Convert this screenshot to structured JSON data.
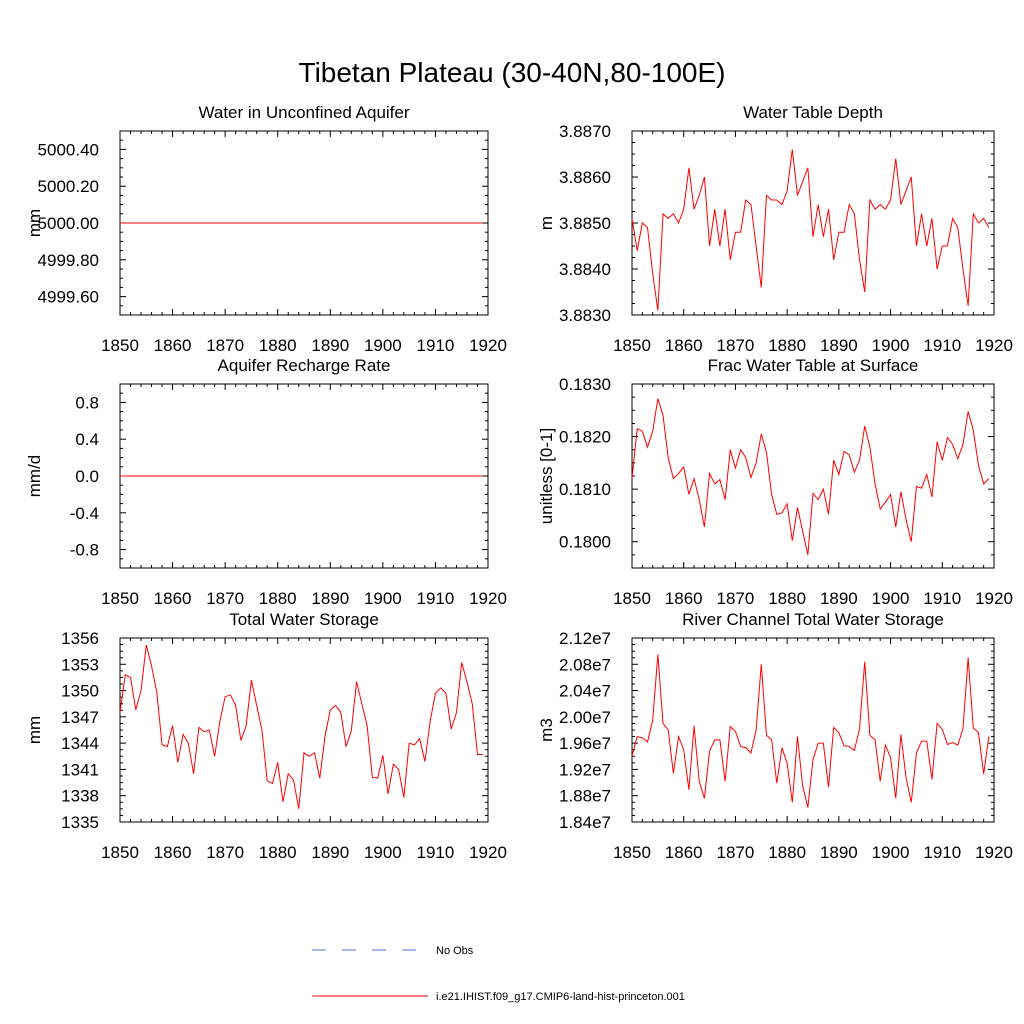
{
  "title": "Tibetan Plateau (30-40N,80-100E)",
  "legend": [
    {
      "label": "No Obs",
      "color": "#5a6fd6",
      "style": "dashed"
    },
    {
      "label": "i.e21.IHIST.f09_g17.CMIP6-land-hist-princeton.001",
      "color": "#ff0000",
      "style": "solid"
    }
  ],
  "chart_data": [
    {
      "type": "line",
      "title": "Water in Unconfined Aquifer",
      "ylabel": "mm",
      "xlim": [
        1850,
        1920
      ],
      "ylim": [
        4999.5,
        5000.5
      ],
      "xticks": [
        1850,
        1860,
        1870,
        1880,
        1890,
        1900,
        1910,
        1920
      ],
      "yticks": [
        4999.6,
        4999.8,
        5000.0,
        5000.2,
        5000.4
      ],
      "ytick_labels": [
        "4999.60",
        "4999.80",
        "5000.00",
        "5000.20",
        "5000.40"
      ],
      "series": [
        {
          "color": "#ff0000",
          "x_start": 1850,
          "x_step": 1,
          "y": [
            5000,
            5000,
            5000,
            5000,
            5000,
            5000,
            5000,
            5000,
            5000,
            5000,
            5000,
            5000,
            5000,
            5000,
            5000,
            5000,
            5000,
            5000,
            5000,
            5000,
            5000,
            5000,
            5000,
            5000,
            5000,
            5000,
            5000,
            5000,
            5000,
            5000,
            5000,
            5000,
            5000,
            5000,
            5000,
            5000,
            5000,
            5000,
            5000,
            5000,
            5000,
            5000,
            5000,
            5000,
            5000,
            5000,
            5000,
            5000,
            5000,
            5000,
            5000,
            5000,
            5000,
            5000,
            5000,
            5000,
            5000,
            5000,
            5000,
            5000,
            5000,
            5000,
            5000,
            5000,
            5000,
            5000,
            5000,
            5000,
            5000,
            5000
          ]
        }
      ]
    },
    {
      "type": "line",
      "title": "Water Table Depth",
      "ylabel": "m",
      "xlim": [
        1850,
        1920
      ],
      "ylim": [
        3.883,
        3.887
      ],
      "xticks": [
        1850,
        1860,
        1870,
        1880,
        1890,
        1900,
        1910,
        1920
      ],
      "yticks": [
        3.883,
        3.884,
        3.885,
        3.886,
        3.887
      ],
      "ytick_labels": [
        "3.8830",
        "3.8840",
        "3.8850",
        "3.8860",
        "3.8870"
      ],
      "series": [
        {
          "color": "#ff0000",
          "x_start": 1850,
          "x_step": 1,
          "y": [
            3.8851,
            3.8844,
            3.885,
            3.8849,
            3.8839,
            3.8831,
            3.8852,
            3.8851,
            3.8852,
            3.885,
            3.8853,
            3.8862,
            3.8853,
            3.8856,
            3.886,
            3.8845,
            3.8853,
            3.8845,
            3.8853,
            3.8842,
            3.8848,
            3.8848,
            3.8855,
            3.8854,
            3.8845,
            3.8836,
            3.8856,
            3.8855,
            3.8855,
            3.8854,
            3.8857,
            3.8866,
            3.8856,
            3.8859,
            3.8862,
            3.8847,
            3.8854,
            3.8847,
            3.8853,
            3.8842,
            3.8848,
            3.8848,
            3.8854,
            3.8852,
            3.8842,
            3.8835,
            3.8855,
            3.8853,
            3.8854,
            3.8853,
            3.8855,
            3.8864,
            3.8854,
            3.8857,
            3.886,
            3.8845,
            3.8852,
            3.8845,
            3.8851,
            3.884,
            3.8845,
            3.8845,
            3.8851,
            3.8849,
            3.884,
            3.8832,
            3.8852,
            3.885,
            3.8851,
            3.8849
          ]
        }
      ]
    },
    {
      "type": "line",
      "title": "Aquifer Recharge Rate",
      "ylabel": "mm/d",
      "xlim": [
        1850,
        1920
      ],
      "ylim": [
        -1.0,
        1.0
      ],
      "xticks": [
        1850,
        1860,
        1870,
        1880,
        1890,
        1900,
        1910,
        1920
      ],
      "yticks": [
        -0.8,
        -0.4,
        0.0,
        0.4,
        0.8
      ],
      "ytick_labels": [
        "-0.8",
        "-0.4",
        "0.0",
        "0.4",
        "0.8"
      ],
      "series": [
        {
          "color": "#ff0000",
          "x_start": 1850,
          "x_step": 1,
          "y": [
            0,
            0,
            0,
            0,
            0,
            0,
            0,
            0,
            0,
            0,
            0,
            0,
            0,
            0,
            0,
            0,
            0,
            0,
            0,
            0,
            0,
            0,
            0,
            0,
            0,
            0,
            0,
            0,
            0,
            0,
            0,
            0,
            0,
            0,
            0,
            0,
            0,
            0,
            0,
            0,
            0,
            0,
            0,
            0,
            0,
            0,
            0,
            0,
            0,
            0,
            0,
            0,
            0,
            0,
            0,
            0,
            0,
            0,
            0,
            0,
            0,
            0,
            0,
            0,
            0,
            0,
            0,
            0,
            0,
            0
          ]
        }
      ]
    },
    {
      "type": "line",
      "title": "Frac Water Table at Surface",
      "ylabel": "unitless [0-1]",
      "xlim": [
        1850,
        1920
      ],
      "ylim": [
        0.1795,
        0.183
      ],
      "xticks": [
        1850,
        1860,
        1870,
        1880,
        1890,
        1900,
        1910,
        1920
      ],
      "yticks": [
        0.18,
        0.181,
        0.182,
        0.183
      ],
      "ytick_labels": [
        "0.1800",
        "0.1810",
        "0.1820",
        "0.1830"
      ],
      "series": [
        {
          "color": "#ff0000",
          "x_start": 1850,
          "x_step": 1,
          "y": [
            0.1812,
            0.18215,
            0.1821,
            0.1818,
            0.1821,
            0.18272,
            0.1824,
            0.1816,
            0.1812,
            0.1813,
            0.18142,
            0.1809,
            0.1812,
            0.1808,
            0.18028,
            0.1813,
            0.1811,
            0.18118,
            0.1808,
            0.18175,
            0.1814,
            0.18175,
            0.1816,
            0.18122,
            0.1815,
            0.18205,
            0.1817,
            0.1809,
            0.18052,
            0.18055,
            0.18072,
            0.18002,
            0.18065,
            0.1802,
            0.17975,
            0.18092,
            0.1808,
            0.181,
            0.18052,
            0.18155,
            0.18128,
            0.18172,
            0.18165,
            0.18132,
            0.18155,
            0.1822,
            0.1818,
            0.1811,
            0.18062,
            0.18075,
            0.1809,
            0.18028,
            0.18095,
            0.18042,
            0.18,
            0.18105,
            0.18102,
            0.18128,
            0.18085,
            0.1819,
            0.18155,
            0.18198,
            0.18185,
            0.18158,
            0.18185,
            0.18248,
            0.18212,
            0.18145,
            0.1811,
            0.1812
          ]
        }
      ]
    },
    {
      "type": "line",
      "title": "Total Water Storage",
      "ylabel": "mm",
      "xlim": [
        1850,
        1920
      ],
      "ylim": [
        1335,
        1356
      ],
      "xticks": [
        1850,
        1860,
        1870,
        1880,
        1890,
        1900,
        1910,
        1920
      ],
      "yticks": [
        1335,
        1338,
        1341,
        1344,
        1347,
        1350,
        1353,
        1356
      ],
      "ytick_labels": [
        "1335",
        "1338",
        "1341",
        "1344",
        "1347",
        "1350",
        "1353",
        "1356"
      ],
      "series": [
        {
          "color": "#ff0000",
          "x_start": 1850,
          "x_step": 1,
          "y": [
            1347.5,
            1351.8,
            1351.5,
            1347.8,
            1350,
            1355.2,
            1352.8,
            1349.8,
            1343.8,
            1343.6,
            1346,
            1341.8,
            1345,
            1344,
            1340.5,
            1345.8,
            1345.3,
            1345.5,
            1342.5,
            1346.5,
            1349.3,
            1349.5,
            1348.3,
            1344.3,
            1346,
            1351.2,
            1348.3,
            1345.5,
            1339.7,
            1339.4,
            1341.8,
            1337.3,
            1340.5,
            1339.8,
            1336.5,
            1342.9,
            1342.5,
            1342.9,
            1340,
            1344.8,
            1347.8,
            1348.3,
            1347.5,
            1343.6,
            1345.4,
            1351,
            1348.5,
            1346,
            1340.1,
            1340,
            1342.6,
            1338.2,
            1341.6,
            1341,
            1337.8,
            1344,
            1343.8,
            1344.5,
            1341.9,
            1346.5,
            1349.7,
            1350.3,
            1349.7,
            1345.6,
            1347.5,
            1353.2,
            1351,
            1348.5,
            1342.7,
            1342.7
          ]
        }
      ]
    },
    {
      "type": "line",
      "title": "River Channel Total Water Storage",
      "ylabel": "m3",
      "xlim": [
        1850,
        1920
      ],
      "ylim": [
        18400000,
        21200000
      ],
      "xticks": [
        1850,
        1860,
        1870,
        1880,
        1890,
        1900,
        1910,
        1920
      ],
      "yticks": [
        18400000,
        18800000,
        19200000,
        19600000,
        20000000,
        20400000,
        20800000,
        21200000
      ],
      "ytick_labels": [
        "1.84e7",
        "1.88e7",
        "1.92e7",
        "1.96e7",
        "2.00e7",
        "2.04e7",
        "2.08e7",
        "2.12e7"
      ],
      "series": [
        {
          "color": "#ff0000",
          "x_start": 1850,
          "x_step": 1,
          "y": [
            19400000,
            19700000,
            19680000,
            19620000,
            19950000,
            20950000,
            19900000,
            19800000,
            19140000,
            19700000,
            19500000,
            18890000,
            19860000,
            19020000,
            18760000,
            19480000,
            19650000,
            19650000,
            19020000,
            19850000,
            19780000,
            19550000,
            19530000,
            19450000,
            19800000,
            20800000,
            19720000,
            19650000,
            18990000,
            19530000,
            19290000,
            18700000,
            19700000,
            18950000,
            18620000,
            19350000,
            19600000,
            19600000,
            18930000,
            19840000,
            19760000,
            19560000,
            19550000,
            19490000,
            19820000,
            20840000,
            19720000,
            19650000,
            19020000,
            19570000,
            19380000,
            18760000,
            19730000,
            19070000,
            18700000,
            19450000,
            19630000,
            19630000,
            19050000,
            19900000,
            19810000,
            19580000,
            19610000,
            19570000,
            19820000,
            20900000,
            19830000,
            19760000,
            19130000,
            19700000
          ]
        }
      ]
    }
  ]
}
